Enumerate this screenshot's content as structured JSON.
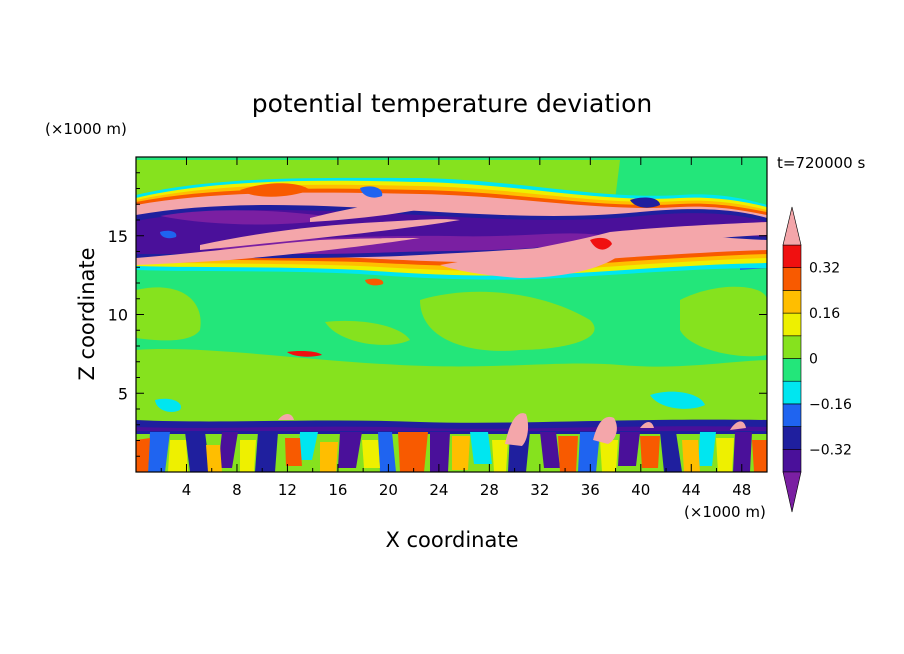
{
  "chart_data": {
    "type": "heatmap",
    "title": "potential temperature deviation",
    "xlabel": "X coordinate",
    "ylabel": "Z coordinate",
    "x_unit": "(×1000 m)",
    "y_unit": "(×1000 m)",
    "time_label": "t=720000 s",
    "xlim": [
      0,
      50
    ],
    "ylim": [
      0,
      20
    ],
    "x_ticks": [
      "4",
      "8",
      "12",
      "16",
      "20",
      "24",
      "28",
      "32",
      "36",
      "40",
      "44",
      "48"
    ],
    "x_tick_values": [
      4,
      8,
      12,
      16,
      20,
      24,
      28,
      32,
      36,
      40,
      44,
      48
    ],
    "y_ticks": [
      "5",
      "10",
      "15"
    ],
    "y_tick_values": [
      5,
      10,
      15
    ],
    "colorbar": {
      "levels": [
        -0.4,
        -0.32,
        -0.24,
        -0.16,
        -0.08,
        0,
        0.08,
        0.16,
        0.24,
        0.32,
        0.4
      ],
      "tick_labels": [
        "0.32",
        "0.16",
        "0",
        "−0.16",
        "−0.32"
      ],
      "tick_values": [
        0.32,
        0.16,
        0,
        -0.16,
        -0.32
      ],
      "colors": {
        "below": "#7a1fa2",
        "band_-0.40": "#4a109a",
        "band_-0.32": "#1f1f9e",
        "band_-0.24": "#1f64f0",
        "band_-0.16": "#00e6f0",
        "band_-0.08": "#23e67a",
        "band_0": "#86e21e",
        "band_0.08": "#eef000",
        "band_0.16": "#ffbe00",
        "band_0.24": "#f85a00",
        "band_0.32": "#f01010",
        "above": "#f4a6aa"
      }
    },
    "layers": [
      {
        "z_range": [
          0,
          3.5
        ],
        "pattern": "turbulent convective boundary layer, mixed positive and negative deviations"
      },
      {
        "z_range": [
          3.5,
          8
        ],
        "pattern": "small positive deviations (0 to 0.08)"
      },
      {
        "z_range": [
          8,
          13
        ],
        "pattern": "near zero (-0.08 to 0.08)"
      },
      {
        "z_range": [
          13,
          18
        ],
        "pattern": "tilted bands of strong positive (>0.4) and strong negative (<-0.4) deviations"
      },
      {
        "z_range": [
          18,
          20
        ],
        "pattern": "near zero with small positive and negative patches"
      }
    ]
  }
}
